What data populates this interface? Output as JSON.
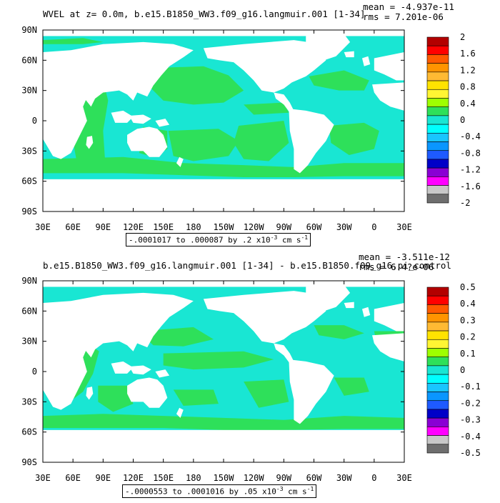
{
  "panels": [
    {
      "title": "WVEL at z=    0.0m, b.e15.B1850_WW3.f09_g16.langmuir.001 [1-34]",
      "mean_text": "mean = -4.937e-11",
      "rms_text": "rms = 7.201e-06",
      "range_text": "-.0001017 to .000087 by .2 x10",
      "range_exp": "-3",
      "range_unit": " cm s",
      "range_unit_exp": "-1",
      "x_ticks": [
        "30E",
        "60E",
        "90E",
        "120E",
        "150E",
        "180",
        "150W",
        "120W",
        "90W",
        "60W",
        "30W",
        "0",
        "30E"
      ],
      "y_ticks": [
        "90N",
        "60N",
        "30N",
        "0",
        "30S",
        "60S",
        "90S"
      ],
      "colorbar_labels": [
        "2",
        "1.6",
        "1.2",
        "0.8",
        "0.4",
        "0",
        "-0.4",
        "-0.8",
        "-1.2",
        "-1.6",
        "-2"
      ]
    },
    {
      "title": "b.e15.B1850_WW3.f09_g16.langmuir.001 [1-34] - b.e15.B1850.f09_g16.pi_control",
      "mean_text": "mean = -3.511e-12",
      "rms_text": "rms = 6.4?e-06",
      "range_text": "-.0000553 to .0001016 by .05 x10",
      "range_exp": "-3",
      "range_unit": " cm s",
      "range_unit_exp": "-1",
      "x_ticks": [
        "30E",
        "60E",
        "90E",
        "120E",
        "150E",
        "180",
        "150W",
        "120W",
        "90W",
        "60W",
        "30W",
        "0",
        "30E"
      ],
      "y_ticks": [
        "90N",
        "60N",
        "30N",
        "0",
        "30S",
        "60S",
        "90S"
      ],
      "colorbar_labels": [
        "0.5",
        "0.4",
        "0.3",
        "0.2",
        "0.1",
        "0",
        "-0.1",
        "-0.2",
        "-0.3",
        "-0.4",
        "-0.5"
      ]
    }
  ],
  "colors": {
    "ocean_cyan": "#19e6d3",
    "ocean_green": "#2ee05a",
    "land": "#ffffff",
    "colorbar": [
      "#b30000",
      "#ff0000",
      "#ff5a00",
      "#ff9400",
      "#ffba33",
      "#ffe300",
      "#fff533",
      "#9eff00",
      "#2ee05a",
      "#19e6d3",
      "#00ffff",
      "#19c5ff",
      "#0a96ff",
      "#1e5aff",
      "#0000c8",
      "#8a00d4",
      "#ff00ff",
      "#c8c8c8",
      "#6e6e6e"
    ]
  },
  "chart_data": [
    {
      "type": "heatmap",
      "title": "WVEL at z=    0.0m, b.e15.B1850_WW3.f09_g16.langmuir.001 [1-34]",
      "variable": "WVEL",
      "depth": "0.0m",
      "units": "x10^-3 cm s^-1",
      "x_range": [
        "30E",
        "30E"
      ],
      "y_range": [
        "90S",
        "90N"
      ],
      "contour_min": -0.0001017,
      "contour_max": 8.7e-05,
      "contour_interval": 0.2,
      "colorbar_levels": [
        2,
        1.6,
        1.2,
        0.8,
        0.4,
        0,
        -0.4,
        -0.8,
        -1.2,
        -1.6,
        -2
      ],
      "mean": -4.937e-11,
      "dominant_classes": [
        "0 to 0.4 (green)",
        "-0.4 to 0 (cyan)"
      ]
    },
    {
      "type": "heatmap",
      "title": "b.e15.B1850_WW3.f09_g16.langmuir.001 [1-34] - b.e15.B1850.f09_g16.pi_control",
      "variable": "WVEL difference",
      "units": "x10^-3 cm s^-1",
      "x_range": [
        "30E",
        "30E"
      ],
      "y_range": [
        "90S",
        "90N"
      ],
      "contour_min": -5.53e-05,
      "contour_max": 0.0001016,
      "contour_interval": 0.05,
      "colorbar_levels": [
        0.5,
        0.4,
        0.3,
        0.2,
        0.1,
        0,
        -0.1,
        -0.2,
        -0.3,
        -0.4,
        -0.5
      ],
      "mean": -3.511e-12,
      "dominant_classes": [
        "0 to 0.1 (green)",
        "-0.1 to 0 (cyan)"
      ]
    }
  ]
}
